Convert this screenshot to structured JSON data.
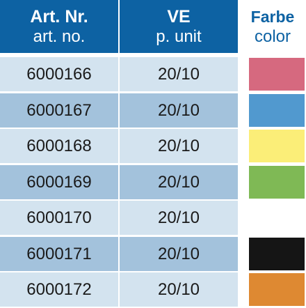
{
  "header": {
    "art_label_de": "Art. Nr.",
    "art_label_en": "art. no.",
    "ve_label_de": "VE",
    "ve_label_en": "p. unit",
    "color_label_de": "Farbe",
    "color_label_en": "color"
  },
  "rows": [
    {
      "art": "6000166",
      "ve": "20/10",
      "color": "#d6697f"
    },
    {
      "art": "6000167",
      "ve": "20/10",
      "color": "#5199cf"
    },
    {
      "art": "6000168",
      "ve": "20/10",
      "color": "#fbee78"
    },
    {
      "art": "6000169",
      "ve": "20/10",
      "color": "#7fb955"
    },
    {
      "art": "6000170",
      "ve": "20/10",
      "color": "#ffffff"
    },
    {
      "art": "6000171",
      "ve": "20/10",
      "color": "#151515"
    },
    {
      "art": "6000172",
      "ve": "20/10",
      "color": "#de8932"
    }
  ],
  "colors": {
    "header_bg": "#0d62a3",
    "row_light": "#d3e3ef",
    "row_dark": "#a3c2dc"
  }
}
